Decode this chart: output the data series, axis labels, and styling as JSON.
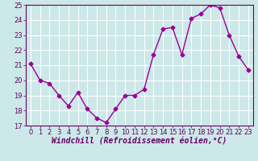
{
  "x": [
    0,
    1,
    2,
    3,
    4,
    5,
    6,
    7,
    8,
    9,
    10,
    11,
    12,
    13,
    14,
    15,
    16,
    17,
    18,
    19,
    20,
    21,
    22,
    23
  ],
  "y": [
    21.1,
    20.0,
    19.8,
    19.0,
    18.3,
    19.2,
    18.1,
    17.5,
    17.2,
    18.1,
    19.0,
    19.0,
    19.4,
    21.7,
    23.4,
    23.5,
    21.7,
    24.1,
    24.4,
    25.0,
    24.8,
    23.0,
    21.6,
    20.7
  ],
  "line_color": "#990099",
  "marker": "D",
  "marker_size": 2.5,
  "line_width": 1.0,
  "xlabel": "Windchill (Refroidissement éolien,°C)",
  "xlabel_fontsize": 7,
  "ylim": [
    17,
    25
  ],
  "xlim_min": -0.5,
  "xlim_max": 23.5,
  "yticks": [
    17,
    18,
    19,
    20,
    21,
    22,
    23,
    24,
    25
  ],
  "xticks": [
    0,
    1,
    2,
    3,
    4,
    5,
    6,
    7,
    8,
    9,
    10,
    11,
    12,
    13,
    14,
    15,
    16,
    17,
    18,
    19,
    20,
    21,
    22,
    23
  ],
  "tick_fontsize": 6,
  "background_color": "#cce8e8",
  "grid_color": "#ffffff",
  "tick_color": "#660066",
  "spine_color": "#660066",
  "label_color": "#660066"
}
